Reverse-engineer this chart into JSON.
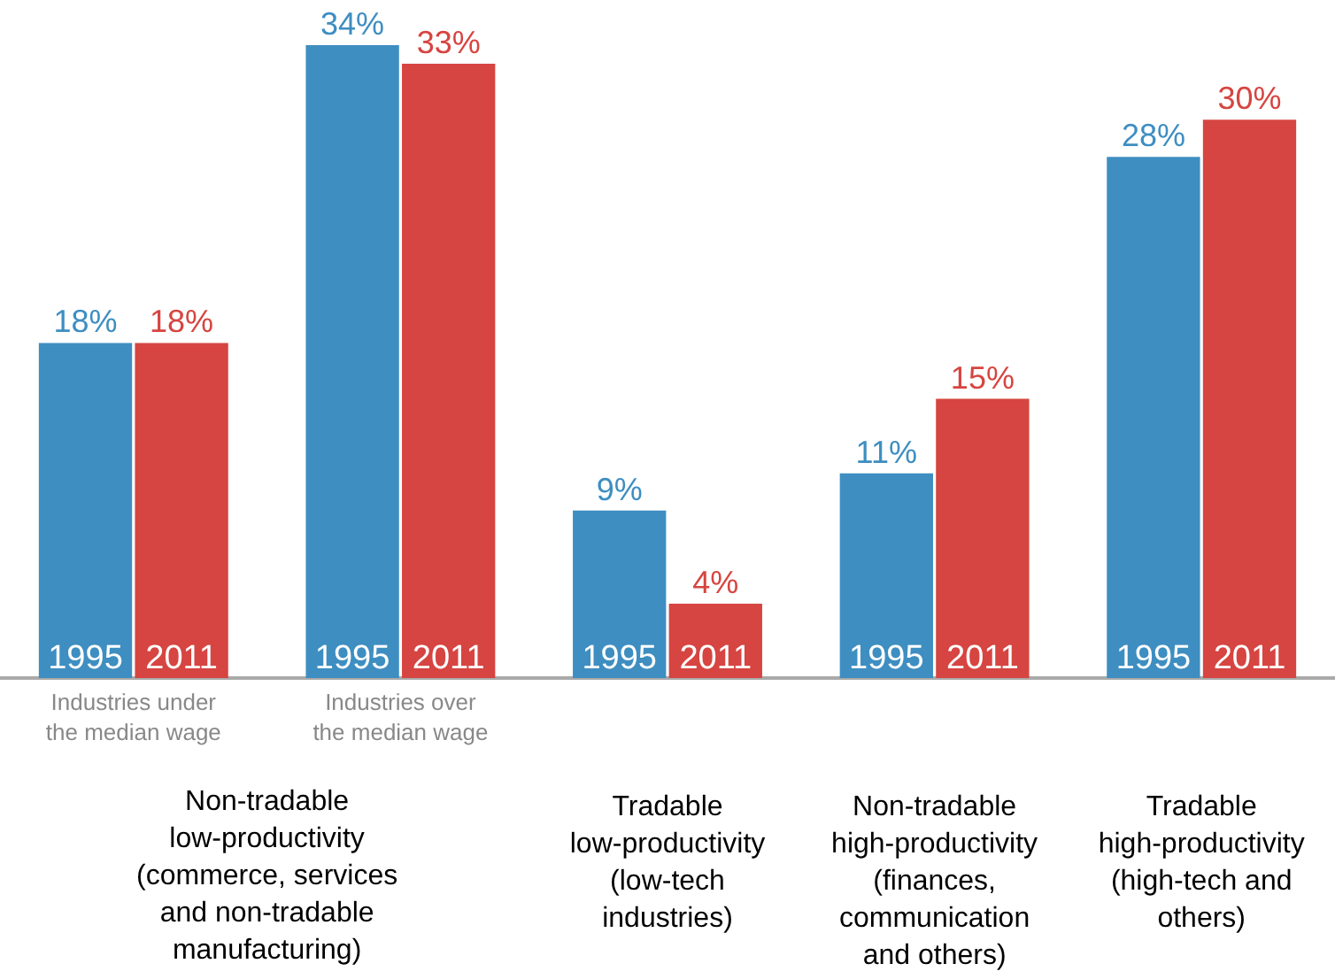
{
  "chart_data": {
    "type": "bar",
    "categories": [
      "Industries under the median wage",
      "Industries over the median wage",
      "Tradable low-productivity (low-tech industries)",
      "Non-tradable high-productivity (finances, communication and others)",
      "Tradable high-productivity (high-tech and others)"
    ],
    "series": [
      {
        "name": "1995",
        "color": "#3e8ec1",
        "values": [
          18,
          34,
          9,
          11,
          28
        ],
        "value_labels": [
          "18%",
          "34%",
          "9%",
          "11%",
          "28%"
        ]
      },
      {
        "name": "2011",
        "color": "#d64541",
        "values": [
          18,
          33,
          4,
          15,
          30
        ],
        "value_labels": [
          "18%",
          "33%",
          "4%",
          "15%",
          "30%"
        ]
      }
    ],
    "annotations": [
      "Non-tradable low-productivity (commerce, services and non-tradable manufacturing)"
    ],
    "legend": false,
    "grid": false
  }
}
